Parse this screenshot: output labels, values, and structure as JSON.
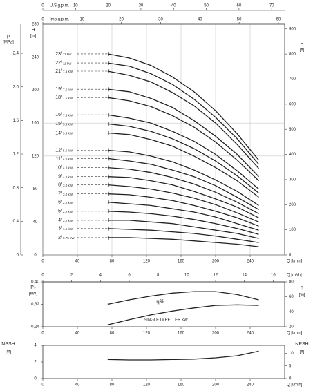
{
  "chart_data": [
    {
      "type": "line",
      "y_label": "H",
      "y_unit": "[m]",
      "p_label": "p",
      "p_unit": "[MPa]",
      "y2_label": "H",
      "y2_unit": "[ft]",
      "x_label": "Q [l/min]",
      "xlim": [
        0,
        280
      ],
      "xticks": [
        0,
        40,
        80,
        120,
        160,
        200,
        240
      ],
      "ylim": [
        0,
        280
      ],
      "yticks": [
        0,
        40,
        80,
        120,
        160,
        200,
        240,
        280
      ],
      "pticks": [
        0,
        0.4,
        0.8,
        1.2,
        1.6,
        {
          "value": 2,
          "label": "2.0"
        },
        2.4
      ],
      "y2ticks": [
        0,
        100,
        200,
        300,
        400,
        500,
        600,
        700,
        800,
        900
      ],
      "grid": true,
      "flow_axes": [
        {
          "label": "U.S.g.p.m.",
          "ticks": [
            0,
            10,
            20,
            30,
            40,
            50,
            60,
            70
          ]
        },
        {
          "label": "Imp.g.p.m.",
          "ticks": [
            0,
            10,
            20,
            30,
            40,
            50,
            60
          ]
        }
      ],
      "x": [
        75,
        100,
        125,
        150,
        175,
        200,
        225,
        250
      ],
      "series": [
        {
          "name": "23/",
          "power": "11 kW",
          "color": "#222",
          "values": [
            244,
            239,
            230,
            216,
            198,
            175,
            147,
            115
          ]
        },
        {
          "name": "22/",
          "power": "11 kW",
          "color": "#222",
          "values": [
            233,
            229,
            220,
            207,
            189,
            167,
            141,
            110
          ]
        },
        {
          "name": "21/",
          "power": "7.5 kW",
          "color": "#222",
          "values": [
            223,
            218,
            210,
            197,
            181,
            160,
            134,
            105
          ]
        },
        {
          "name": "19/",
          "power": "7.5 kW",
          "color": "#222",
          "values": [
            201,
            198,
            190,
            179,
            163,
            144,
            122,
            95
          ]
        },
        {
          "name": "18/",
          "power": "7.5 kW",
          "color": "#222",
          "values": [
            191,
            187,
            180,
            169,
            155,
            137,
            115,
            90
          ]
        },
        {
          "name": "16/",
          "power": "7.5 kW",
          "color": "#222",
          "values": [
            170,
            166,
            160,
            150,
            138,
            122,
            102,
            80
          ]
        },
        {
          "name": "15/",
          "power": "5.5 kW",
          "color": "#222",
          "values": [
            159,
            156,
            150,
            141,
            129,
            114,
            96,
            75
          ]
        },
        {
          "name": "14/",
          "power": "5.5 kW",
          "color": "#222",
          "values": [
            148,
            146,
            140,
            132,
            120,
            106,
            90,
            70
          ]
        },
        {
          "name": "12/",
          "power": "5.5 kW",
          "color": "#222",
          "values": [
            127,
            125,
            120,
            113,
            103,
            91,
            77,
            60
          ]
        },
        {
          "name": "11/",
          "power": "4.0 kW",
          "color": "#222",
          "values": [
            117,
            114,
            110,
            103,
            95,
            84,
            70,
            55
          ]
        },
        {
          "name": "10/",
          "power": "4.0 kW",
          "color": "#222",
          "values": [
            106,
            104,
            100,
            94,
            86,
            76,
            64,
            50
          ]
        },
        {
          "name": "9/",
          "power": "4.0 kW",
          "color": "#222",
          "values": [
            95,
            94,
            90,
            85,
            77,
            68,
            58,
            45
          ]
        },
        {
          "name": "8/",
          "power": "3.0 kW",
          "color": "#222",
          "values": [
            85,
            83,
            80,
            75,
            69,
            61,
            51,
            40
          ]
        },
        {
          "name": "7/",
          "power": "3.0 kW",
          "color": "#222",
          "values": [
            74,
            73,
            70,
            66,
            60,
            53,
            45,
            35
          ]
        },
        {
          "name": "6/",
          "power": "2.2 kW",
          "color": "#222",
          "values": [
            64,
            62,
            60,
            56,
            52,
            46,
            38,
            30
          ]
        },
        {
          "name": "5/",
          "power": "2.2 kW",
          "color": "#222",
          "values": [
            53,
            52,
            50,
            47,
            43,
            38,
            32,
            25
          ]
        },
        {
          "name": "4/",
          "power": "2.2 kW",
          "color": "#222",
          "values": [
            42,
            42,
            40,
            38,
            34,
            30,
            26,
            20
          ]
        },
        {
          "name": "3/",
          "power": "1.5 kW",
          "color": "#222",
          "values": [
            32,
            31,
            30,
            28,
            26,
            23,
            19,
            15
          ]
        },
        {
          "name": "2/",
          "power": "0.75 kW",
          "color": "#222",
          "values": [
            21,
            21,
            20,
            19,
            17,
            15,
            13,
            10
          ]
        }
      ]
    },
    {
      "type": "line",
      "y_label": "P₂",
      "y_unit": "[kW]",
      "y2_label": "η",
      "y2_unit": "[%]",
      "x_label": "Q [l/min]",
      "flow_axes": [
        {
          "label": "Q [m³/h]",
          "ticks": [
            0,
            2,
            4,
            6,
            8,
            10,
            12,
            14,
            16
          ]
        }
      ],
      "xlim": [
        0,
        280
      ],
      "xticks": [
        0,
        40,
        80,
        120,
        160,
        200,
        240
      ],
      "ylim": [
        0.24,
        0.4
      ],
      "yticks": [
        {
          "value": 0.24,
          "label": "0,24"
        },
        {
          "value": 0.32,
          "label": "0,32"
        },
        {
          "value": 0.4,
          "label": "0,40"
        }
      ],
      "y2lim": [
        20,
        80
      ],
      "y2ticks": [
        20,
        40,
        60,
        80
      ],
      "x": [
        75,
        100,
        125,
        150,
        175,
        200,
        225,
        250
      ],
      "series": [
        {
          "name": "η%",
          "axis": "y2",
          "color": "#222",
          "values": [
            50,
            56,
            61,
            65,
            67,
            67,
            63,
            56
          ]
        },
        {
          "name": "SINGLE IMPELLER kW",
          "color": "#222",
          "values": [
            0.247,
            0.265,
            0.282,
            0.296,
            0.307,
            0.316,
            0.318,
            0.316
          ]
        }
      ]
    },
    {
      "type": "line",
      "y_label": "NPSH",
      "y_unit": "[m]",
      "y2_label": "NPSH",
      "y2_unit": "[ft]",
      "x_label": "Q [l/min]",
      "xlim": [
        0,
        280
      ],
      "xticks": [
        0,
        40,
        80,
        120,
        160,
        200,
        240
      ],
      "ylim": [
        0,
        4
      ],
      "yticks": [
        0,
        2,
        4
      ],
      "y2ticks": [
        0,
        5,
        10
      ],
      "x": [
        75,
        100,
        125,
        150,
        175,
        200,
        225,
        250
      ],
      "series": [
        {
          "name": "NPSH",
          "color": "#222",
          "values": [
            2.3,
            2.25,
            2.25,
            2.3,
            2.35,
            2.5,
            2.75,
            3.3
          ]
        }
      ]
    }
  ]
}
